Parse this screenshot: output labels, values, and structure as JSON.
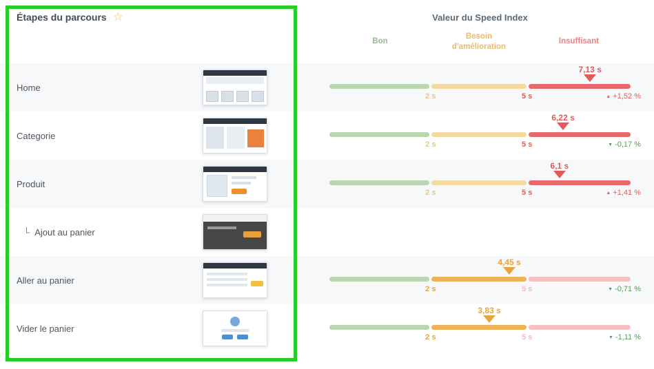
{
  "header": {
    "left_title": "Étapes du parcours",
    "right_title": "Valeur du Speed Index",
    "zones": [
      {
        "label": "Bon",
        "color": "#94bd8c"
      },
      {
        "label": "Besoin d'amélioration",
        "color": "#edb96d"
      },
      {
        "label": "Insuffisant",
        "color": "#ea8282"
      }
    ]
  },
  "icons": {
    "star": "☆",
    "up": "▲",
    "down": "▼",
    "indent": "└"
  },
  "gauge": {
    "tick_labels": [
      "2 s",
      "5 s"
    ],
    "thresholds": [
      2,
      5
    ],
    "max": 8.5,
    "segment_fracs": [
      0.336,
      0.32,
      0.344
    ],
    "colors": {
      "good": "#bad6ae",
      "mid_muted": "#f4daa1",
      "mid_active": "#eeb257",
      "bad_muted": "#f5c0c0",
      "bad_active": "#e7696c",
      "value_red": "#e05c5c",
      "value_orange": "#e8a53f",
      "trend_up": "#e05c5c",
      "trend_down": "#53a058"
    }
  },
  "steps": [
    {
      "label": "Home",
      "indent": false,
      "thumb": "v1",
      "value": 7.13,
      "value_label": "7,13 s",
      "zone": "red",
      "change": {
        "dir": "up",
        "label": "+1,52 %"
      }
    },
    {
      "label": "Categorie",
      "indent": false,
      "thumb": "v2",
      "value": 6.22,
      "value_label": "6,22 s",
      "zone": "red",
      "change": {
        "dir": "down",
        "label": "-0,17 %"
      }
    },
    {
      "label": "Produit",
      "indent": false,
      "thumb": "v3",
      "value": 6.1,
      "value_label": "6,1 s",
      "zone": "red",
      "change": {
        "dir": "up",
        "label": "+1,41 %"
      }
    },
    {
      "label": "Ajout au panier",
      "indent": true,
      "thumb": "v4",
      "value": null,
      "value_label": "",
      "zone": null,
      "change": null
    },
    {
      "label": "Aller au panier",
      "indent": false,
      "thumb": "v5",
      "value": 4.45,
      "value_label": "4,45 s",
      "zone": "orange",
      "change": {
        "dir": "down",
        "label": "-0,71 %"
      }
    },
    {
      "label": "Vider le panier",
      "indent": false,
      "thumb": "v6",
      "value": 3.83,
      "value_label": "3,83 s",
      "zone": "orange",
      "change": {
        "dir": "down",
        "label": "-1,11 %"
      }
    }
  ],
  "annotation": {
    "color": "#27ce27"
  }
}
